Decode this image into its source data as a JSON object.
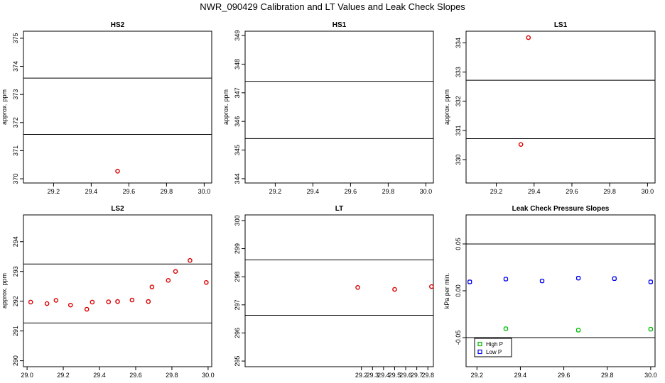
{
  "title": "NWR_090429  Calibration and LT Values and Leak Check Slopes",
  "colors": {
    "points": "#dd0000",
    "high_p": "#00bb00",
    "low_p": "#0000ee",
    "axis": "#000000"
  },
  "chart_data": [
    {
      "id": "hs2",
      "type": "scatter",
      "title": "HS2",
      "ylabel": "approx. ppm",
      "xlim": [
        29.04,
        30.04
      ],
      "ylim": [
        369.85,
        375.25
      ],
      "xticks": [
        "29.2",
        "29.4",
        "29.6",
        "29.8",
        "30.0"
      ],
      "yticks": [
        "370",
        "371",
        "372",
        "373",
        "374",
        "375"
      ],
      "hlines": [
        371.58,
        373.58
      ],
      "series": [
        {
          "color": "#dd0000",
          "points": [
            [
              29.54,
              370.27
            ]
          ]
        }
      ]
    },
    {
      "id": "hs1",
      "type": "scatter",
      "title": "HS1",
      "ylabel": "approx. ppm",
      "xlim": [
        29.04,
        30.04
      ],
      "ylim": [
        343.85,
        349.15
      ],
      "xticks": [
        "29.2",
        "29.4",
        "29.6",
        "29.8",
        "30.0"
      ],
      "yticks": [
        "344",
        "345",
        "346",
        "347",
        "348",
        "349"
      ],
      "hlines": [
        345.4,
        347.4
      ],
      "series": []
    },
    {
      "id": "ls1",
      "type": "scatter",
      "title": "LS1",
      "ylabel": "approx. ppm",
      "xlim": [
        29.04,
        30.04
      ],
      "ylim": [
        329.2,
        334.4
      ],
      "xticks": [
        "29.2",
        "29.4",
        "29.6",
        "29.8",
        "30.0"
      ],
      "yticks": [
        "330",
        "331",
        "332",
        "333",
        "334"
      ],
      "hlines": [
        330.72,
        332.72
      ],
      "series": [
        {
          "color": "#dd0000",
          "points": [
            [
              29.33,
              330.52
            ],
            [
              29.37,
              334.18
            ]
          ]
        }
      ]
    },
    {
      "id": "ls2",
      "type": "scatter",
      "title": "LS2",
      "ylabel": "approx. ppm",
      "xlim": [
        28.98,
        30.02
      ],
      "ylim": [
        289.8,
        294.9
      ],
      "xticks": [
        "29.0",
        "29.2",
        "29.4",
        "29.6",
        "29.8",
        "30.0"
      ],
      "yticks": [
        "290",
        "291",
        "292",
        "293",
        "294"
      ],
      "hlines": [
        291.27,
        293.25
      ],
      "series": [
        {
          "color": "#dd0000",
          "points": [
            [
              29.02,
              291.97
            ],
            [
              29.11,
              291.92
            ],
            [
              29.16,
              292.03
            ],
            [
              29.24,
              291.87
            ],
            [
              29.33,
              291.73
            ],
            [
              29.36,
              291.97
            ],
            [
              29.45,
              291.98
            ],
            [
              29.5,
              291.99
            ],
            [
              29.58,
              292.04
            ],
            [
              29.67,
              291.99
            ],
            [
              29.69,
              292.48
            ],
            [
              29.78,
              292.7
            ],
            [
              29.82,
              293.0
            ],
            [
              29.9,
              293.37
            ],
            [
              29.99,
              292.63
            ]
          ]
        }
      ]
    },
    {
      "id": "lt",
      "type": "scatter",
      "title": "LT",
      "xlim": [
        28.15,
        29.85
      ],
      "ylim": [
        294.8,
        300.2
      ],
      "xticks": [
        "29.2",
        "29.3",
        "29.4",
        "29.5",
        "29.6",
        "29.7",
        "29.8"
      ],
      "yticks": [
        "295",
        "296",
        "297",
        "298",
        "299",
        "300"
      ],
      "hlines": [
        296.63,
        298.6
      ],
      "series": [
        {
          "color": "#dd0000",
          "points": [
            [
              29.167,
              297.62
            ],
            [
              29.5,
              297.55
            ],
            [
              29.833,
              297.65
            ]
          ]
        }
      ]
    },
    {
      "id": "leak",
      "type": "scatter",
      "title": "Leak Check Pressure Slopes",
      "ylabel": "kPa per min.",
      "xlim": [
        29.15,
        30.02
      ],
      "ylim": [
        -0.081,
        0.081
      ],
      "xticks": [
        "29.2",
        "29.4",
        "29.6",
        "29.8",
        "30.0"
      ],
      "yticks": [
        "-0.05",
        "0.00",
        "0.05"
      ],
      "hlines": [
        -0.05,
        0.05
      ],
      "series": [
        {
          "name": "High P",
          "color": "#00bb00",
          "points": [
            [
              29.333,
              -0.0405
            ],
            [
              29.667,
              -0.042
            ],
            [
              30.0,
              -0.041
            ]
          ]
        },
        {
          "name": "Low P",
          "color": "#0000ee",
          "points": [
            [
              29.167,
              0.0095
            ],
            [
              29.333,
              0.0125
            ],
            [
              29.5,
              0.0105
            ],
            [
              29.667,
              0.0135
            ],
            [
              29.833,
              0.013
            ],
            [
              30.0,
              0.0095
            ]
          ]
        }
      ],
      "legend": {
        "position": "bottom-left",
        "entries": [
          "High P",
          "Low P"
        ]
      }
    }
  ]
}
